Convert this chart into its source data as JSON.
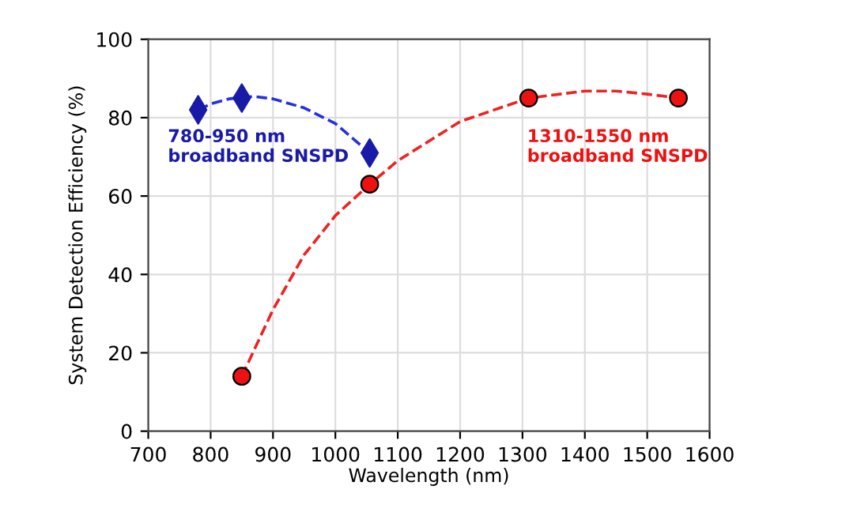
{
  "chart_data": {
    "type": "scatter",
    "xlabel": "Wavelength (nm)",
    "ylabel": "System Detection Efficiency (%)",
    "xlim": [
      700,
      1600
    ],
    "xticks": [
      700,
      800,
      900,
      1000,
      1100,
      1200,
      1300,
      1400,
      1500,
      1600
    ],
    "ylim": [
      0,
      100
    ],
    "yticks": [
      0,
      20,
      40,
      60,
      80,
      100
    ],
    "grid": true,
    "legend": false,
    "series": [
      {
        "type": "line",
        "color": "#2233dd",
        "line_style": "dashed",
        "marker": "none",
        "x": [
          780,
          800,
          830,
          850,
          870,
          900,
          950,
          1000,
          1055
        ],
        "values": [
          82,
          83.5,
          84.8,
          85.2,
          85.4,
          84.8,
          82.5,
          78.5,
          71
        ]
      },
      {
        "type": "line",
        "color": "#ee2222",
        "line_style": "dashed",
        "marker": "none",
        "x": [
          850,
          900,
          950,
          1000,
          1055,
          1100,
          1200,
          1310,
          1400,
          1450,
          1500,
          1550
        ],
        "values": [
          14,
          31,
          45,
          55,
          63,
          69,
          79,
          85,
          86.8,
          86.8,
          86,
          85
        ]
      },
      {
        "name": "780-950 nm\nbroadband SNSPD",
        "color": "#1a1aa8",
        "marker": "diamond",
        "x": [
          780,
          850,
          1055
        ],
        "values": [
          82,
          85,
          71
        ]
      },
      {
        "name": "1310-1550 nm\nbroadband SNSPD",
        "color": "#ee1111",
        "marker": "circle",
        "x": [
          850,
          1055,
          1310,
          1550
        ],
        "values": [
          14,
          63,
          85,
          85
        ]
      }
    ]
  }
}
